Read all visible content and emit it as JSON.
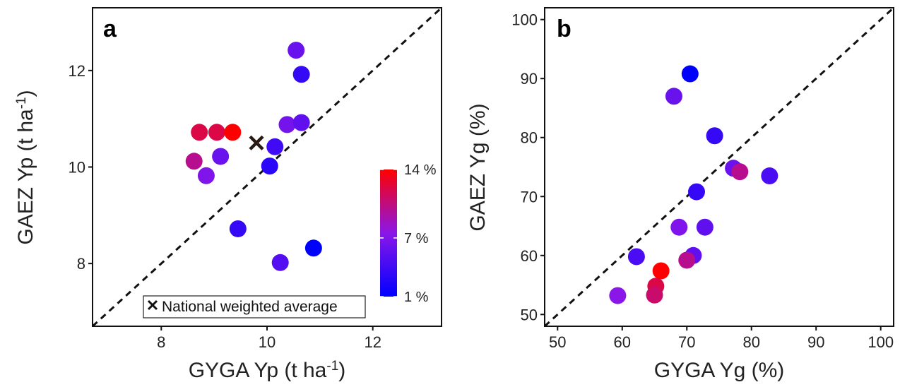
{
  "chart_data": [
    {
      "type": "scatter",
      "panel_label": "a",
      "xlabel": "GYGA Yp (t ha-1)",
      "ylabel": "GAEZ Yp (t ha-1)",
      "xlabel_parts": {
        "base": "GYGA Yp (t ha",
        "sup": "-1",
        "close": ")"
      },
      "ylabel_parts": {
        "base": "GAEZ Yp (t ha",
        "sup": "-1",
        "close": ")"
      },
      "xlim": [
        6.7,
        13.3
      ],
      "ylim": [
        6.7,
        13.3
      ],
      "xticks": [
        8,
        10,
        12
      ],
      "yticks": [
        8,
        10,
        12
      ],
      "xtick_labels": [
        "8",
        "10",
        "12"
      ],
      "ytick_labels": [
        "8",
        "10",
        "12"
      ],
      "identity_line": true,
      "grid": false,
      "colorbar": {
        "min": 1,
        "max": 14,
        "ticks": [
          1,
          7,
          14
        ],
        "tick_labels": [
          "1 %",
          "7 %",
          "14 %"
        ],
        "colors": [
          "#0000ff",
          "#8a17e8",
          "#ff0000"
        ]
      },
      "points": [
        {
          "x": 10.55,
          "y": 12.42,
          "c": 6
        },
        {
          "x": 10.65,
          "y": 11.92,
          "c": 3.5
        },
        {
          "x": 8.72,
          "y": 10.72,
          "c": 12
        },
        {
          "x": 9.05,
          "y": 10.72,
          "c": 12
        },
        {
          "x": 9.35,
          "y": 10.72,
          "c": 14
        },
        {
          "x": 10.38,
          "y": 10.88,
          "c": 6.5
        },
        {
          "x": 10.65,
          "y": 10.92,
          "c": 5.5
        },
        {
          "x": 10.15,
          "y": 10.42,
          "c": 4
        },
        {
          "x": 9.12,
          "y": 10.22,
          "c": 6
        },
        {
          "x": 8.62,
          "y": 10.12,
          "c": 10
        },
        {
          "x": 8.85,
          "y": 9.82,
          "c": 7
        },
        {
          "x": 10.05,
          "y": 10.02,
          "c": 3
        },
        {
          "x": 9.45,
          "y": 8.72,
          "c": 3.5
        },
        {
          "x": 10.25,
          "y": 8.02,
          "c": 5
        },
        {
          "x": 10.88,
          "y": 8.32,
          "c": 1
        }
      ],
      "marker_point": {
        "x": 9.8,
        "y": 10.5,
        "label": "National weighted average"
      },
      "legend": {
        "symbol": "x",
        "label": "National weighted average",
        "position": "bottom-left"
      }
    },
    {
      "type": "scatter",
      "panel_label": "b",
      "xlabel": "GYGA Yg (%)",
      "ylabel": "GAEZ Yg (%)",
      "xlim": [
        48,
        102
      ],
      "ylim": [
        48,
        102
      ],
      "xticks": [
        50,
        60,
        70,
        80,
        90,
        100
      ],
      "yticks": [
        50,
        60,
        70,
        80,
        90,
        100
      ],
      "xtick_labels": [
        "50",
        "60",
        "70",
        "80",
        "90",
        "100"
      ],
      "ytick_labels": [
        "50",
        "60",
        "70",
        "80",
        "90",
        "100"
      ],
      "identity_line": true,
      "grid": false,
      "points": [
        {
          "x": 70.5,
          "y": 90.8,
          "c": 1
        },
        {
          "x": 68.0,
          "y": 87.0,
          "c": 6
        },
        {
          "x": 74.3,
          "y": 80.3,
          "c": 3.5
        },
        {
          "x": 77.2,
          "y": 74.8,
          "c": 6
        },
        {
          "x": 78.2,
          "y": 74.2,
          "c": 10
        },
        {
          "x": 82.8,
          "y": 73.5,
          "c": 4.5
        },
        {
          "x": 71.5,
          "y": 70.8,
          "c": 3.5
        },
        {
          "x": 68.8,
          "y": 64.8,
          "c": 7
        },
        {
          "x": 72.8,
          "y": 64.8,
          "c": 5.5
        },
        {
          "x": 62.2,
          "y": 59.8,
          "c": 4.5
        },
        {
          "x": 71.0,
          "y": 60.0,
          "c": 5.5
        },
        {
          "x": 70.0,
          "y": 59.2,
          "c": 10
        },
        {
          "x": 66.0,
          "y": 57.4,
          "c": 14
        },
        {
          "x": 65.2,
          "y": 54.8,
          "c": 12
        },
        {
          "x": 65.0,
          "y": 53.3,
          "c": 11
        },
        {
          "x": 59.3,
          "y": 53.2,
          "c": 7.5
        }
      ]
    }
  ]
}
